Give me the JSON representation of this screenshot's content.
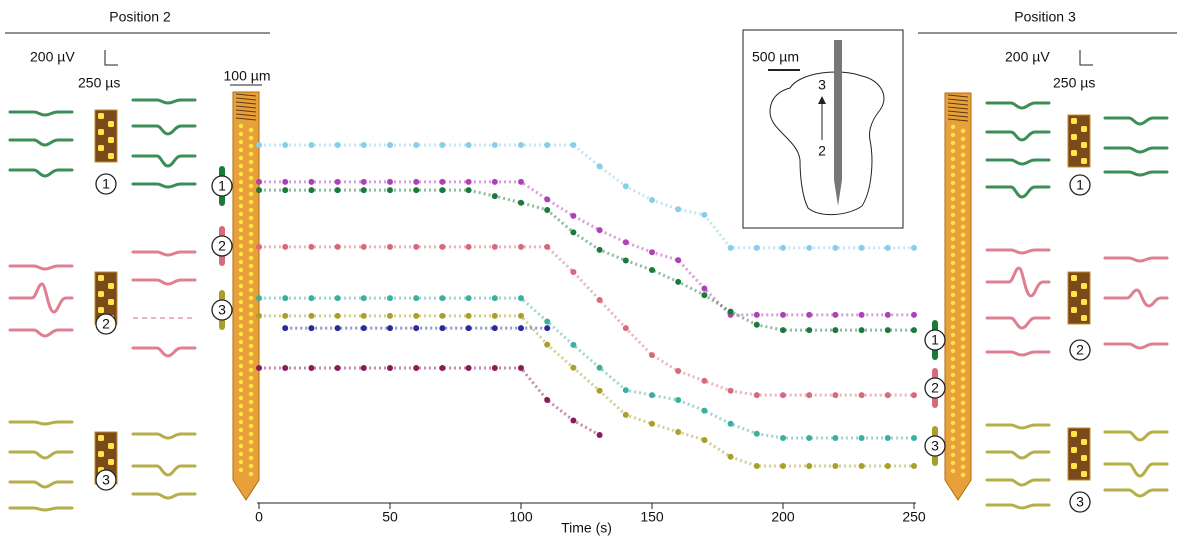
{
  "chart_data": {
    "type": "scatter",
    "xlabel": "Time (s)",
    "x": [
      0,
      10,
      20,
      30,
      40,
      50,
      60,
      70,
      80,
      90,
      100,
      110,
      120,
      130,
      140,
      150,
      160,
      170,
      180,
      190,
      200,
      210,
      220,
      230,
      240,
      250
    ],
    "xlim": [
      0,
      250
    ],
    "xticks": [
      0,
      50,
      100,
      150,
      200,
      250
    ],
    "ylim": [
      0,
      100
    ],
    "series": [
      {
        "color": "#87ceeb",
        "values": [
          98.5,
          98.5,
          98.5,
          98.5,
          98.5,
          98.5,
          98.5,
          98.5,
          98.5,
          98.5,
          98.5,
          98.5,
          98.5,
          92,
          86,
          81.8,
          79,
          77.3,
          67.3,
          67.3,
          67.3,
          67.3,
          67.3,
          67.3,
          67.3,
          67.3
        ]
      },
      {
        "color": "#b040b8",
        "values": [
          87.3,
          87.3,
          87.3,
          87.3,
          87.3,
          87.3,
          87.3,
          87.3,
          87.3,
          87.3,
          87.3,
          82,
          77,
          72.7,
          69,
          66,
          63.6,
          55,
          47,
          47,
          47,
          47,
          47,
          47,
          47,
          47
        ]
      },
      {
        "color": "#1a7a3a",
        "values": [
          84.8,
          84.8,
          84.8,
          84.8,
          84.8,
          84.8,
          84.8,
          84.8,
          84.8,
          83,
          81,
          78.8,
          72,
          66.7,
          63.5,
          60.6,
          57,
          53,
          48,
          44,
          42.4,
          42.4,
          42.4,
          42.4,
          42.4,
          42.4
        ]
      },
      {
        "color": "#d86a7e",
        "values": [
          67.6,
          67.6,
          67.6,
          67.6,
          67.6,
          67.6,
          67.6,
          67.6,
          67.6,
          67.6,
          67.6,
          67.6,
          60,
          51.5,
          43,
          34.8,
          30,
          27,
          24,
          22.7,
          22.7,
          22.7,
          22.7,
          22.7,
          22.7,
          22.7
        ]
      },
      {
        "color": "#3bb0a0",
        "values": [
          52.1,
          52.1,
          52.1,
          52.1,
          52.1,
          52.1,
          52.1,
          52.1,
          52.1,
          52.1,
          52.1,
          45,
          37.9,
          31,
          24.2,
          22.7,
          21.2,
          18,
          14,
          11,
          9.7,
          9.7,
          9.7,
          9.7,
          9.7,
          9.7
        ]
      },
      {
        "color": "#a8a02a",
        "values": [
          46.7,
          46.7,
          46.7,
          46.7,
          46.7,
          46.7,
          46.7,
          46.7,
          46.7,
          46.7,
          46.7,
          38,
          31,
          24,
          16.7,
          14,
          11.5,
          9.1,
          4,
          1.2,
          1.2,
          1.2,
          1.2,
          1.2,
          1.2,
          1.2
        ]
      },
      {
        "color": "#2a2a9a",
        "values": [
          null,
          43,
          43,
          43,
          43,
          43,
          43,
          43,
          43,
          43,
          43,
          43,
          null,
          null,
          null,
          null,
          null,
          null,
          null,
          null,
          null,
          null,
          null,
          null,
          null,
          null
        ]
      },
      {
        "color": "#8a1a5a",
        "values": [
          30.9,
          30.9,
          30.9,
          30.9,
          30.9,
          30.9,
          30.9,
          30.9,
          30.9,
          30.9,
          30.9,
          21.2,
          15,
          10.6,
          null,
          null,
          null,
          null,
          null,
          null,
          null,
          null,
          null,
          null,
          null,
          null
        ]
      }
    ]
  },
  "panels": {
    "left_title": "Position 2",
    "right_title": "Position 3",
    "voltage_scale": "200 µV",
    "time_scale": "250 µs",
    "probe_scale": "100 µm",
    "inset_scale": "500 µm",
    "inset_positions": [
      "3",
      "2"
    ],
    "unit_labels": [
      "1",
      "2",
      "3"
    ]
  }
}
